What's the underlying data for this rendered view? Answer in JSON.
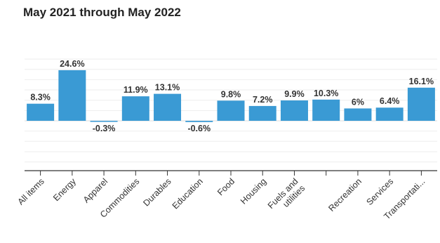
{
  "chart_data": {
    "type": "bar",
    "title": "May 2021 through May 2022",
    "categories": [
      "All items",
      "Energy",
      "Apparel",
      "Commodities",
      "Durables",
      "Education",
      "Food",
      "Housing",
      "Fuels and utilities",
      "",
      "Recreation",
      "Services",
      "Transportati..."
    ],
    "values": [
      8.3,
      24.6,
      -0.3,
      11.9,
      13.1,
      -0.6,
      9.8,
      7.2,
      9.9,
      10.3,
      6,
      6.4,
      16.1
    ],
    "data_labels": [
      "8.3%",
      "24.6%",
      "-0.3%",
      "11.9%",
      "13.1%",
      "-0.6%",
      "9.8%",
      "7.2%",
      "9.9%",
      "10.3%",
      "6%",
      "6.4%",
      "16.1%"
    ],
    "ylim": [
      -20,
      30
    ],
    "grid": true,
    "bar_color": "#3a9ad4",
    "xlabel": "",
    "ylabel": ""
  }
}
